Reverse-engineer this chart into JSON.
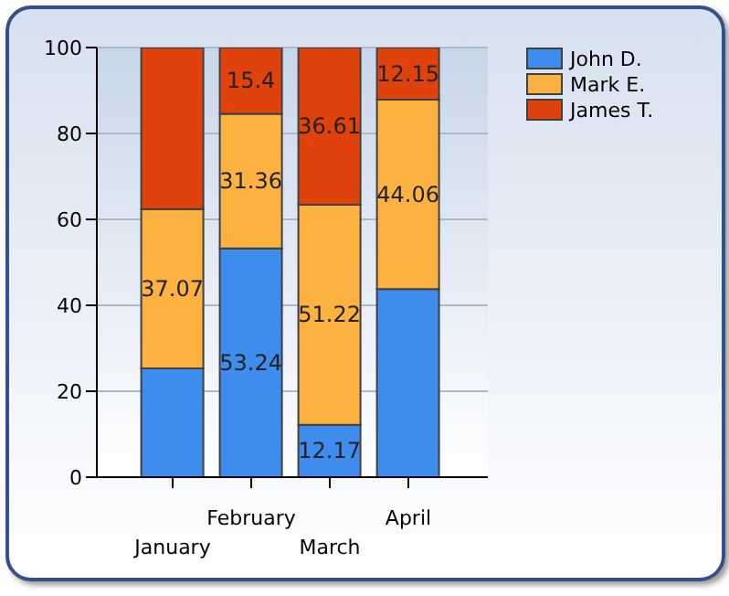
{
  "chart_data": {
    "type": "bar",
    "stacked": true,
    "categories": [
      "January",
      "February",
      "March",
      "April"
    ],
    "series": [
      {
        "name": "John D.",
        "color": "#3f8cef",
        "values": [
          25.3,
          53.24,
          12.17,
          43.8
        ],
        "value_labels": [
          null,
          "53.24",
          "12.17",
          null
        ]
      },
      {
        "name": "Mark E.",
        "color": "#fbb240",
        "values": [
          37.07,
          31.36,
          51.22,
          44.06
        ],
        "value_labels": [
          "37.07",
          "31.36",
          "51.22",
          "44.06"
        ]
      },
      {
        "name": "James T.",
        "color": "#e0420c",
        "values": [
          37.6,
          15.4,
          36.61,
          12.15
        ],
        "value_labels": [
          null,
          "15.4",
          "36.61",
          "12.15"
        ]
      }
    ],
    "ylim": [
      0,
      100
    ],
    "yticks": [
      0,
      20,
      40,
      60,
      80,
      100
    ],
    "grid": "y",
    "legend": "top right"
  }
}
